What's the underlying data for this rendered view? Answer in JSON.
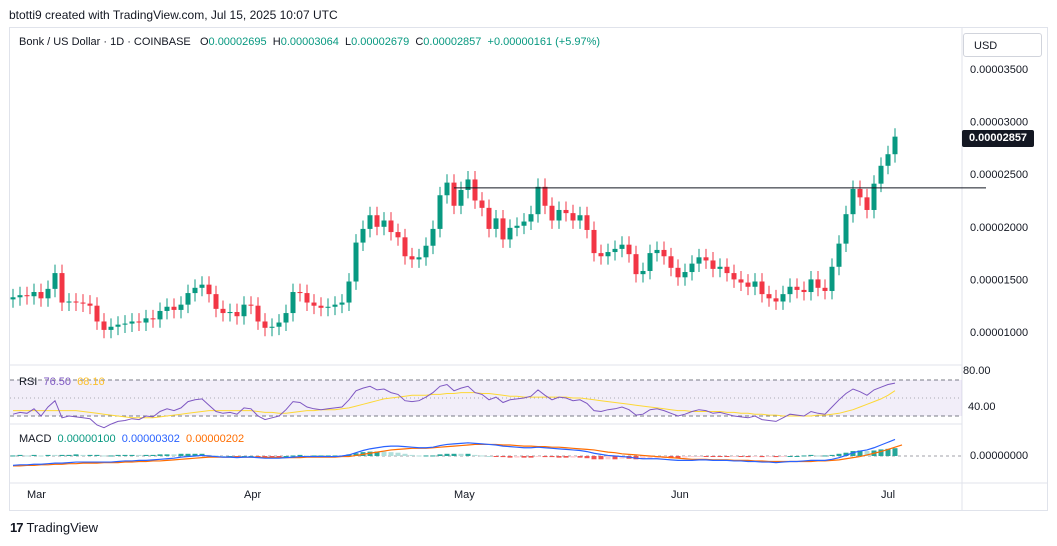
{
  "caption": "btotti9 created with TradingView.com, Jul 15, 2025 10:07 UTC",
  "header": {
    "symbol": "Bonk / US Dollar · 1D · COINBASE",
    "open_label": "O",
    "open": "0.00002695",
    "high_label": "H",
    "high": "0.00003064",
    "low_label": "L",
    "low": "0.00002679",
    "close_label": "C",
    "close": "0.00002857",
    "change": "+0.00000161 (+5.97%)"
  },
  "currency": "USD",
  "price_tag": "0.00002857",
  "rsi": {
    "label": "RSI",
    "value": "76.50",
    "ma_value": "68.16",
    "upper_level": "80.00",
    "lower_level": "40.00"
  },
  "macd": {
    "label": "MACD",
    "histogram": "0.00000100",
    "macd_line": "0.00000302",
    "signal_line": "0.00000202",
    "zero_label": "0.00000000"
  },
  "footer": {
    "brand": "TradingView",
    "logo_mark": "17"
  },
  "colors": {
    "up": "#089981",
    "down": "#f23645",
    "rsi_line": "#7e57c2",
    "rsi_ma": "#fdd835",
    "macd_line": "#2962ff",
    "signal_line": "#ff6d00",
    "hist_up": "#26a69a",
    "hist_up_light": "#b2dfdb",
    "hist_down": "#ef5350",
    "hist_down_light": "#ffcdd2"
  },
  "chart_data": {
    "type": "candlestick",
    "title": "Bonk / US Dollar · 1D · COINBASE",
    "y_ticks": [
      "0.00003500",
      "0.00003000",
      "0.00002500",
      "0.00002000",
      "0.00001500",
      "0.00001000"
    ],
    "y_tick_values": [
      3.5e-05,
      3e-05,
      2.5e-05,
      2e-05,
      1.5e-05,
      1e-05
    ],
    "x_ticks": [
      "Mar",
      "Apr",
      "May",
      "Jun",
      "Jul"
    ],
    "x_tick_day_index": [
      0,
      31,
      61,
      92,
      122
    ],
    "start_day_label": "Mar",
    "resistance_line": {
      "value": 2.37e-05,
      "start_day": 63,
      "end_day": 139
    },
    "closes": [
      13.3,
      13.5,
      13.4,
      13.8,
      13.2,
      14.1,
      15.6,
      12.8,
      12.9,
      12.8,
      12.7,
      12.5,
      11.0,
      10.2,
      10.5,
      10.7,
      10.8,
      11.0,
      10.9,
      11.3,
      11.2,
      12.0,
      12.4,
      12.1,
      12.6,
      13.7,
      14.2,
      14.5,
      13.6,
      12.2,
      11.8,
      11.9,
      11.5,
      12.6,
      12.5,
      11.0,
      10.4,
      10.5,
      10.9,
      11.8,
      13.8,
      13.7,
      12.8,
      12.5,
      12.3,
      12.4,
      12.6,
      12.8,
      14.8,
      18.5,
      19.8,
      21.1,
      20.0,
      20.6,
      19.5,
      19.0,
      17.2,
      16.9,
      17.1,
      18.2,
      19.8,
      23.0,
      24.2,
      22.0,
      23.5,
      24.5,
      22.5,
      21.8,
      19.8,
      20.8,
      18.8,
      19.9,
      20.1,
      20.5,
      21.2,
      23.8,
      22.0,
      20.6,
      21.6,
      21.3,
      20.6,
      21.1,
      19.7,
      17.5,
      17.2,
      17.6,
      17.9,
      18.3,
      17.4,
      15.5,
      15.8,
      17.5,
      17.8,
      17.2,
      16.1,
      15.2,
      15.7,
      16.5,
      17.1,
      16.8,
      16.0,
      16.2,
      15.6,
      15.0,
      14.7,
      14.3,
      14.8,
      13.6,
      13.2,
      12.9,
      13.6,
      14.3,
      14.0,
      13.8,
      15.0,
      14.2,
      13.9,
      16.2,
      18.4,
      21.2,
      23.6,
      22.8,
      21.6,
      24.1,
      25.8,
      26.9,
      28.57
    ],
    "opens_note": "open is previous close",
    "highs_wick": 0.8,
    "lows_wick": 0.8,
    "rsi_series": [
      42,
      44,
      43,
      48,
      40,
      50,
      57,
      38,
      40,
      39,
      38,
      37,
      30,
      27,
      31,
      34,
      35,
      37,
      36,
      40,
      39,
      45,
      48,
      46,
      49,
      56,
      58,
      59,
      52,
      45,
      43,
      44,
      42,
      49,
      48,
      40,
      36,
      38,
      40,
      47,
      56,
      55,
      50,
      48,
      47,
      48,
      49,
      50,
      58,
      68,
      71,
      73,
      69,
      70,
      66,
      64,
      57,
      56,
      57,
      61,
      66,
      73,
      75,
      68,
      71,
      73,
      66,
      64,
      58,
      61,
      55,
      58,
      59,
      60,
      62,
      69,
      63,
      58,
      61,
      60,
      57,
      58,
      54,
      46,
      45,
      47,
      48,
      50,
      47,
      41,
      42,
      47,
      48,
      46,
      43,
      40,
      42,
      45,
      47,
      46,
      43,
      44,
      42,
      40,
      39,
      38,
      40,
      36,
      35,
      34,
      38,
      42,
      41,
      40,
      45,
      43,
      42,
      50,
      58,
      65,
      70,
      67,
      63,
      69,
      72,
      75,
      76.5
    ],
    "rsi_ma_series": [
      46,
      46,
      46,
      46,
      46,
      46,
      46,
      46,
      46,
      46,
      45,
      44,
      43,
      42,
      41,
      40,
      39,
      38,
      38,
      38,
      38,
      39,
      40,
      41,
      42,
      43,
      44,
      45,
      46,
      46,
      46,
      46,
      46,
      46,
      46,
      45,
      44,
      44,
      43,
      43,
      44,
      45,
      46,
      46,
      47,
      47,
      47,
      48,
      49,
      51,
      53,
      55,
      57,
      59,
      60,
      61,
      62,
      63,
      63,
      63,
      64,
      64,
      65,
      65,
      66,
      66,
      66,
      65,
      65,
      64,
      63,
      62,
      62,
      61,
      61,
      61,
      61,
      61,
      61,
      61,
      60,
      60,
      59,
      58,
      57,
      56,
      55,
      54,
      53,
      52,
      51,
      50,
      49,
      48,
      47,
      46,
      46,
      45,
      45,
      45,
      45,
      45,
      44,
      44,
      43,
      43,
      42,
      42,
      41,
      41,
      40,
      40,
      40,
      40,
      40,
      41,
      41,
      42,
      43,
      45,
      47,
      50,
      53,
      56,
      59,
      63,
      68.16
    ],
    "macd_series": [
      -1.7,
      -1.6,
      -1.6,
      -1.5,
      -1.5,
      -1.4,
      -1.3,
      -1.3,
      -1.2,
      -1.1,
      -1.1,
      -1.1,
      -1.1,
      -1.1,
      -1.1,
      -1.0,
      -0.9,
      -0.9,
      -0.8,
      -0.8,
      -0.7,
      -0.6,
      -0.5,
      -0.4,
      -0.2,
      -0.1,
      0.0,
      0.1,
      0.0,
      -0.1,
      -0.2,
      -0.2,
      -0.3,
      -0.2,
      -0.2,
      -0.3,
      -0.4,
      -0.4,
      -0.4,
      -0.3,
      -0.2,
      -0.1,
      -0.1,
      -0.1,
      -0.1,
      -0.1,
      -0.1,
      0.0,
      0.2,
      0.6,
      1.0,
      1.3,
      1.5,
      1.7,
      1.8,
      1.8,
      1.7,
      1.6,
      1.5,
      1.5,
      1.6,
      1.9,
      2.1,
      2.2,
      2.3,
      2.4,
      2.3,
      2.2,
      2.1,
      2.0,
      1.8,
      1.7,
      1.6,
      1.5,
      1.5,
      1.6,
      1.5,
      1.4,
      1.3,
      1.2,
      1.1,
      1.0,
      0.8,
      0.5,
      0.3,
      0.1,
      0.0,
      -0.1,
      -0.2,
      -0.4,
      -0.5,
      -0.5,
      -0.5,
      -0.6,
      -0.7,
      -0.8,
      -0.8,
      -0.8,
      -0.7,
      -0.7,
      -0.8,
      -0.8,
      -0.8,
      -0.9,
      -0.9,
      -1.0,
      -1.0,
      -1.1,
      -1.1,
      -1.2,
      -1.1,
      -1.0,
      -1.0,
      -0.9,
      -0.8,
      -0.8,
      -0.8,
      -0.6,
      -0.3,
      0.1,
      0.6,
      0.9,
      1.1,
      1.5,
      2.0,
      2.5,
      3.02
    ],
    "signal_series": [
      -1.8,
      -1.8,
      -1.7,
      -1.7,
      -1.6,
      -1.6,
      -1.5,
      -1.5,
      -1.4,
      -1.4,
      -1.3,
      -1.3,
      -1.3,
      -1.2,
      -1.2,
      -1.2,
      -1.1,
      -1.1,
      -1.0,
      -1.0,
      -0.9,
      -0.9,
      -0.8,
      -0.7,
      -0.6,
      -0.5,
      -0.4,
      -0.3,
      -0.2,
      -0.2,
      -0.2,
      -0.2,
      -0.2,
      -0.2,
      -0.2,
      -0.2,
      -0.3,
      -0.3,
      -0.3,
      -0.3,
      -0.3,
      -0.3,
      -0.2,
      -0.2,
      -0.2,
      -0.2,
      -0.2,
      -0.1,
      -0.1,
      0.1,
      0.3,
      0.5,
      0.7,
      0.9,
      1.1,
      1.2,
      1.3,
      1.4,
      1.4,
      1.4,
      1.5,
      1.6,
      1.7,
      1.8,
      1.9,
      2.0,
      2.1,
      2.1,
      2.1,
      2.1,
      2.0,
      2.0,
      1.9,
      1.8,
      1.8,
      1.7,
      1.7,
      1.6,
      1.6,
      1.5,
      1.4,
      1.3,
      1.2,
      1.1,
      0.9,
      0.7,
      0.6,
      0.4,
      0.3,
      0.2,
      0.1,
      0.0,
      -0.1,
      -0.2,
      -0.3,
      -0.4,
      -0.5,
      -0.6,
      -0.6,
      -0.6,
      -0.7,
      -0.7,
      -0.7,
      -0.8,
      -0.8,
      -0.8,
      -0.9,
      -0.9,
      -1.0,
      -1.0,
      -1.0,
      -1.0,
      -1.0,
      -1.0,
      -1.0,
      -0.9,
      -0.9,
      -0.8,
      -0.7,
      -0.5,
      -0.3,
      -0.1,
      0.2,
      0.5,
      0.8,
      1.2,
      1.6,
      2.02
    ],
    "macd_scale_units": "1e-6"
  }
}
